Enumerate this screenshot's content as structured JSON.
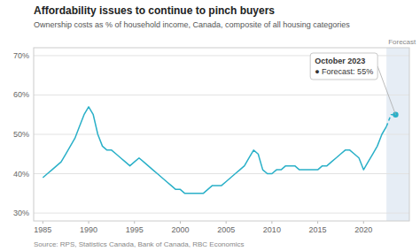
{
  "chart_data": {
    "type": "line",
    "title": "Affordability issues to continue to pinch buyers",
    "subtitle": "Ownership costs as % of household income, Canada, composite of all housing categories",
    "source": "Source: RPS, Statistics Canada, Bank of Canada, RBC Economics",
    "forecast_label": "Forecast",
    "forecast_start": 2022.5,
    "forecast_end": 2025.0,
    "annotation_title": "October 2023",
    "annotation_text": "● Forecast:  55%",
    "x": [
      1985,
      1985.5,
      1986,
      1986.5,
      1987,
      1987.5,
      1988,
      1988.5,
      1989,
      1989.5,
      1990,
      1990.5,
      1991,
      1991.5,
      1992,
      1992.5,
      1993,
      1993.5,
      1994,
      1994.5,
      1995,
      1995.5,
      1996,
      1996.5,
      1997,
      1997.5,
      1998,
      1998.5,
      1999,
      1999.5,
      2000,
      2000.5,
      2001,
      2001.5,
      2002,
      2002.5,
      2003,
      2003.5,
      2004,
      2004.5,
      2005,
      2005.5,
      2006,
      2006.5,
      2007,
      2007.5,
      2008,
      2008.5,
      2009,
      2009.5,
      2010,
      2010.5,
      2011,
      2011.5,
      2012,
      2012.5,
      2013,
      2013.5,
      2014,
      2014.5,
      2015,
      2015.5,
      2016,
      2016.5,
      2017,
      2017.5,
      2018,
      2018.5,
      2019,
      2019.5,
      2020,
      2020.5,
      2021,
      2021.5,
      2022,
      2022.5,
      2023,
      2023.5
    ],
    "series": [
      {
        "color": "#2ab0c8",
        "values": [
          39,
          40,
          41,
          42,
          43,
          45,
          47,
          49,
          52,
          55,
          57,
          55,
          50,
          47,
          46,
          46,
          45,
          44,
          43,
          42,
          43,
          44,
          43,
          42,
          41,
          40,
          39,
          38,
          37,
          36,
          36,
          35,
          35,
          35,
          35,
          35,
          36,
          37,
          37,
          37,
          38,
          39,
          40,
          41,
          42,
          44,
          46,
          45,
          41,
          40,
          40,
          41,
          41,
          42,
          42,
          42,
          41,
          41,
          41,
          41,
          41,
          42,
          42,
          43,
          44,
          45,
          46,
          46,
          45,
          44,
          41,
          43,
          45,
          47,
          50,
          52,
          55,
          55
        ]
      }
    ],
    "xlim": [
      1984,
      2025
    ],
    "xticks": [
      1985,
      1990,
      1995,
      2000,
      2005,
      2010,
      2015,
      2020
    ],
    "ylim": [
      28,
      72
    ],
    "yticks": [
      {
        "value": 30,
        "label": "30%"
      },
      {
        "value": 40,
        "label": "40%"
      },
      {
        "value": 50,
        "label": "50%"
      },
      {
        "value": 60,
        "label": "60%"
      },
      {
        "value": 70,
        "label": "70%"
      }
    ],
    "grid": true
  }
}
